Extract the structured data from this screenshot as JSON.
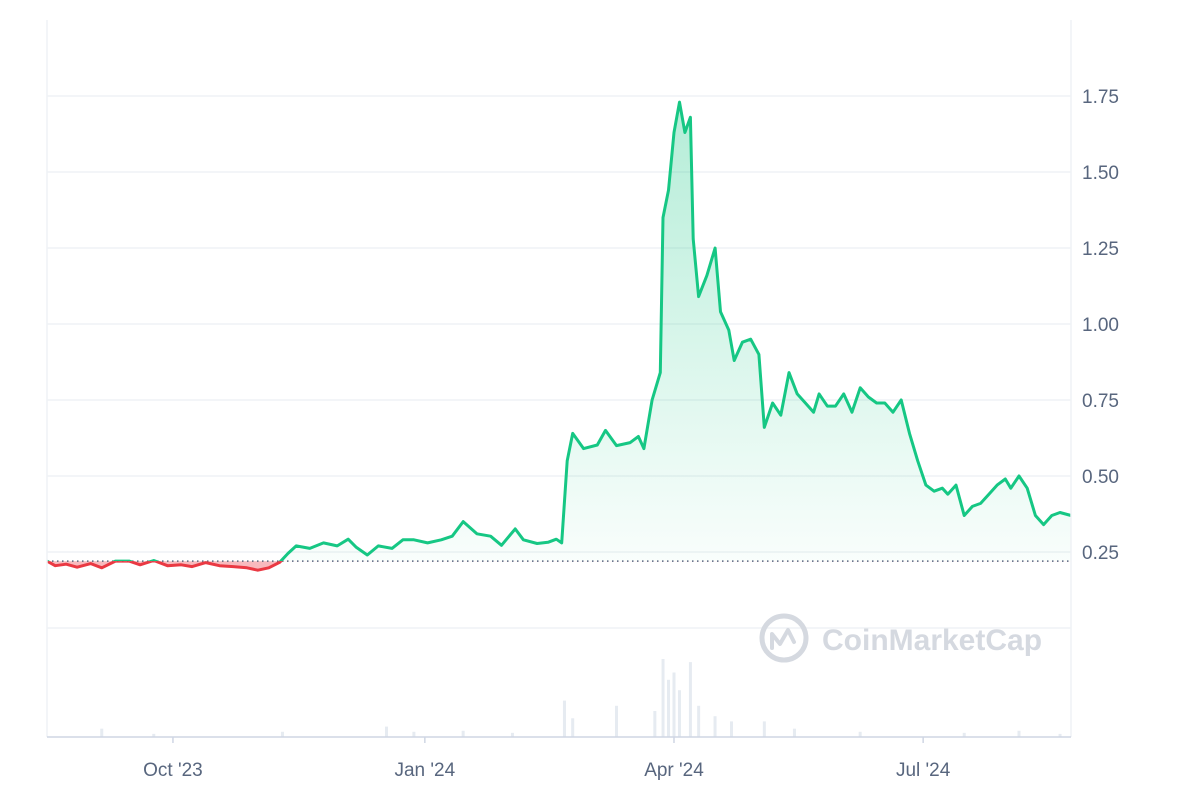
{
  "watermark": "CoinMarketCap",
  "colors": {
    "up": "#16c784",
    "down": "#ea3943",
    "grid": "#eff2f5",
    "axis": "#cfd6e4",
    "volume": "#e6ebf1",
    "text": "#58667e"
  },
  "chart_data": {
    "type": "area",
    "title": "",
    "xlabel": "",
    "ylabel": "",
    "baseline": 0.22,
    "ylim": [
      0,
      2.0
    ],
    "y_ticks": [
      "0.25",
      "0.50",
      "0.75",
      "1.00",
      "1.25",
      "1.50",
      "1.75"
    ],
    "x_ticks": [
      {
        "label": "Oct '23",
        "date": "2023-10-01"
      },
      {
        "label": "Jan '24",
        "date": "2024-01-01"
      },
      {
        "label": "Apr '24",
        "date": "2024-04-01"
      },
      {
        "label": "Jul '24",
        "date": "2024-07-01"
      }
    ],
    "xlim": [
      "2023-08-16",
      "2024-08-24"
    ],
    "grid": true,
    "series": [
      {
        "points": [
          [
            "2023-08-16",
            0.22
          ],
          [
            "2023-08-19",
            0.205
          ],
          [
            "2023-08-23",
            0.21
          ],
          [
            "2023-08-27",
            0.2
          ],
          [
            "2023-09-01",
            0.212
          ],
          [
            "2023-09-05",
            0.198
          ],
          [
            "2023-09-10",
            0.22
          ],
          [
            "2023-09-15",
            0.22
          ],
          [
            "2023-09-19",
            0.208
          ],
          [
            "2023-09-24",
            0.222
          ],
          [
            "2023-09-29",
            0.205
          ],
          [
            "2023-10-04",
            0.208
          ],
          [
            "2023-10-08",
            0.202
          ],
          [
            "2023-10-13",
            0.215
          ],
          [
            "2023-10-18",
            0.205
          ],
          [
            "2023-10-23",
            0.202
          ],
          [
            "2023-10-28",
            0.198
          ],
          [
            "2023-11-01",
            0.19
          ],
          [
            "2023-11-05",
            0.198
          ],
          [
            "2023-11-09",
            0.216
          ],
          [
            "2023-11-12",
            0.245
          ],
          [
            "2023-11-15",
            0.27
          ],
          [
            "2023-11-20",
            0.262
          ],
          [
            "2023-11-25",
            0.28
          ],
          [
            "2023-11-30",
            0.27
          ],
          [
            "2023-12-04",
            0.292
          ],
          [
            "2023-12-07",
            0.265
          ],
          [
            "2023-12-11",
            0.24
          ],
          [
            "2023-12-15",
            0.27
          ],
          [
            "2023-12-20",
            0.262
          ],
          [
            "2023-12-24",
            0.29
          ],
          [
            "2023-12-28",
            0.29
          ],
          [
            "2024-01-02",
            0.28
          ],
          [
            "2024-01-07",
            0.29
          ],
          [
            "2024-01-11",
            0.302
          ],
          [
            "2024-01-15",
            0.35
          ],
          [
            "2024-01-20",
            0.31
          ],
          [
            "2024-01-25",
            0.302
          ],
          [
            "2024-01-29",
            0.272
          ],
          [
            "2024-02-03",
            0.326
          ],
          [
            "2024-02-06",
            0.29
          ],
          [
            "2024-02-11",
            0.278
          ],
          [
            "2024-02-15",
            0.282
          ],
          [
            "2024-02-18",
            0.292
          ],
          [
            "2024-02-20",
            0.28
          ],
          [
            "2024-02-22",
            0.55
          ],
          [
            "2024-02-24",
            0.64
          ],
          [
            "2024-02-28",
            0.59
          ],
          [
            "2024-03-04",
            0.602
          ],
          [
            "2024-03-07",
            0.65
          ],
          [
            "2024-03-11",
            0.6
          ],
          [
            "2024-03-16",
            0.61
          ],
          [
            "2024-03-19",
            0.63
          ],
          [
            "2024-03-21",
            0.59
          ],
          [
            "2024-03-24",
            0.75
          ],
          [
            "2024-03-27",
            0.84
          ],
          [
            "2024-03-28",
            1.35
          ],
          [
            "2024-03-30",
            1.44
          ],
          [
            "2024-04-01",
            1.63
          ],
          [
            "2024-04-03",
            1.73
          ],
          [
            "2024-04-05",
            1.63
          ],
          [
            "2024-04-07",
            1.68
          ],
          [
            "2024-04-08",
            1.28
          ],
          [
            "2024-04-10",
            1.09
          ],
          [
            "2024-04-13",
            1.16
          ],
          [
            "2024-04-16",
            1.25
          ],
          [
            "2024-04-18",
            1.04
          ],
          [
            "2024-04-21",
            0.98
          ],
          [
            "2024-04-23",
            0.88
          ],
          [
            "2024-04-26",
            0.94
          ],
          [
            "2024-04-29",
            0.95
          ],
          [
            "2024-05-02",
            0.9
          ],
          [
            "2024-05-04",
            0.66
          ],
          [
            "2024-05-07",
            0.74
          ],
          [
            "2024-05-10",
            0.7
          ],
          [
            "2024-05-13",
            0.84
          ],
          [
            "2024-05-16",
            0.77
          ],
          [
            "2024-05-19",
            0.74
          ],
          [
            "2024-05-22",
            0.71
          ],
          [
            "2024-05-24",
            0.77
          ],
          [
            "2024-05-27",
            0.73
          ],
          [
            "2024-05-30",
            0.73
          ],
          [
            "2024-06-02",
            0.77
          ],
          [
            "2024-06-05",
            0.71
          ],
          [
            "2024-06-08",
            0.79
          ],
          [
            "2024-06-11",
            0.76
          ],
          [
            "2024-06-14",
            0.74
          ],
          [
            "2024-06-17",
            0.74
          ],
          [
            "2024-06-20",
            0.71
          ],
          [
            "2024-06-23",
            0.75
          ],
          [
            "2024-06-26",
            0.64
          ],
          [
            "2024-06-29",
            0.55
          ],
          [
            "2024-07-02",
            0.47
          ],
          [
            "2024-07-05",
            0.45
          ],
          [
            "2024-07-08",
            0.46
          ],
          [
            "2024-07-10",
            0.44
          ],
          [
            "2024-07-13",
            0.47
          ],
          [
            "2024-07-16",
            0.37
          ],
          [
            "2024-07-19",
            0.4
          ],
          [
            "2024-07-22",
            0.41
          ],
          [
            "2024-07-25",
            0.44
          ],
          [
            "2024-07-28",
            0.47
          ],
          [
            "2024-07-31",
            0.49
          ],
          [
            "2024-08-02",
            0.46
          ],
          [
            "2024-08-05",
            0.5
          ],
          [
            "2024-08-08",
            0.46
          ],
          [
            "2024-08-11",
            0.37
          ],
          [
            "2024-08-14",
            0.34
          ],
          [
            "2024-08-17",
            0.37
          ],
          [
            "2024-08-20",
            0.38
          ],
          [
            "2024-08-24",
            0.37
          ]
        ]
      }
    ],
    "volume": [
      [
        "2023-09-05",
        0.08
      ],
      [
        "2023-09-24",
        0.03
      ],
      [
        "2023-11-10",
        0.05
      ],
      [
        "2023-12-18",
        0.1
      ],
      [
        "2023-12-28",
        0.05
      ],
      [
        "2024-01-15",
        0.06
      ],
      [
        "2024-02-02",
        0.04
      ],
      [
        "2024-02-21",
        0.35
      ],
      [
        "2024-02-24",
        0.18
      ],
      [
        "2024-03-11",
        0.3
      ],
      [
        "2024-03-25",
        0.25
      ],
      [
        "2024-03-28",
        0.75
      ],
      [
        "2024-03-30",
        0.55
      ],
      [
        "2024-04-01",
        0.62
      ],
      [
        "2024-04-03",
        0.45
      ],
      [
        "2024-04-07",
        0.72
      ],
      [
        "2024-04-10",
        0.3
      ],
      [
        "2024-04-16",
        0.2
      ],
      [
        "2024-04-22",
        0.15
      ],
      [
        "2024-05-04",
        0.15
      ],
      [
        "2024-05-15",
        0.08
      ],
      [
        "2024-06-08",
        0.05
      ],
      [
        "2024-07-16",
        0.04
      ],
      [
        "2024-08-05",
        0.06
      ],
      [
        "2024-08-20",
        0.03
      ]
    ]
  }
}
